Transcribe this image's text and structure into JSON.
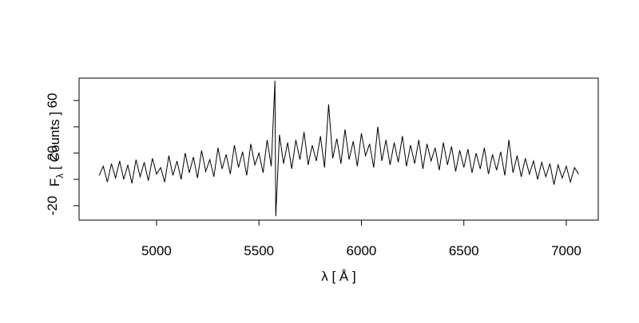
{
  "chart_data": {
    "type": "line",
    "xlabel": "λ [ Å ]",
    "ylabel": {
      "main": "F",
      "sub": "λ",
      "rest": " [ Counts ]"
    },
    "xlim": [
      4622,
      7156
    ],
    "xticks": [
      5000,
      5500,
      6000,
      6500,
      7000
    ],
    "ylim": [
      -31,
      77
    ],
    "yticks": [
      -20,
      20,
      60
    ],
    "yticks_unlabeled": [
      0,
      40
    ],
    "color": "#000000",
    "x": [
      4720,
      4740,
      4760,
      4780,
      4800,
      4820,
      4840,
      4860,
      4880,
      4900,
      4920,
      4940,
      4960,
      4980,
      5000,
      5020,
      5040,
      5060,
      5080,
      5100,
      5120,
      5140,
      5160,
      5180,
      5200,
      5220,
      5240,
      5260,
      5280,
      5300,
      5320,
      5340,
      5360,
      5380,
      5400,
      5420,
      5440,
      5460,
      5480,
      5500,
      5520,
      5540,
      5560,
      5578,
      5582,
      5600,
      5620,
      5640,
      5660,
      5680,
      5700,
      5720,
      5740,
      5760,
      5780,
      5800,
      5820,
      5840,
      5860,
      5880,
      5900,
      5920,
      5940,
      5960,
      5980,
      6000,
      6020,
      6040,
      6060,
      6080,
      6100,
      6120,
      6140,
      6160,
      6180,
      6200,
      6220,
      6240,
      6260,
      6280,
      6300,
      6320,
      6340,
      6360,
      6380,
      6400,
      6420,
      6440,
      6460,
      6480,
      6500,
      6520,
      6540,
      6560,
      6580,
      6600,
      6620,
      6640,
      6660,
      6680,
      6700,
      6720,
      6740,
      6760,
      6780,
      6800,
      6820,
      6840,
      6860,
      6880,
      6900,
      6920,
      6940,
      6960,
      6980,
      7000,
      7020,
      7040,
      7060
    ],
    "values": [
      3,
      10,
      -2,
      12,
      1,
      14,
      0,
      11,
      -3,
      15,
      2,
      13,
      -1,
      16,
      4,
      9,
      -2,
      18,
      3,
      14,
      0,
      20,
      5,
      17,
      1,
      22,
      6,
      15,
      2,
      24,
      8,
      19,
      4,
      26,
      9,
      21,
      3,
      27,
      11,
      20,
      5,
      30,
      10,
      75,
      -28,
      34,
      12,
      28,
      8,
      30,
      15,
      36,
      11,
      26,
      14,
      33,
      9,
      57,
      16,
      31,
      12,
      38,
      15,
      29,
      10,
      35,
      18,
      27,
      9,
      40,
      14,
      30,
      11,
      28,
      13,
      33,
      10,
      26,
      12,
      30,
      8,
      27,
      14,
      24,
      7,
      28,
      11,
      25,
      6,
      22,
      9,
      23,
      5,
      20,
      8,
      24,
      4,
      19,
      7,
      21,
      3,
      30,
      5,
      18,
      2,
      16,
      4,
      14,
      0,
      13,
      2,
      12,
      -4,
      11,
      1,
      10,
      -2,
      9,
      4
    ]
  }
}
